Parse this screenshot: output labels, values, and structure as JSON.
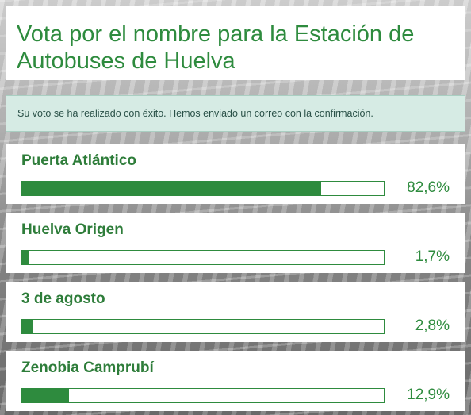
{
  "poll": {
    "title": "Vota por el nombre para la Estación de Autobuses de Huelva",
    "confirmation": "Su voto se ha realizado con éxito. Hemos enviado un correo con la confirmación.",
    "options": [
      {
        "label": "Puerta Atlántico",
        "percent_text": "82,6%",
        "percent": 82.6
      },
      {
        "label": "Huelva Origen",
        "percent_text": "1,7%",
        "percent": 1.7
      },
      {
        "label": "3 de agosto",
        "percent_text": "2,8%",
        "percent": 2.8
      },
      {
        "label": "Zenobia Camprubí",
        "percent_text": "12,9%",
        "percent": 12.9
      }
    ]
  },
  "colors": {
    "accent": "#2e8b3e",
    "alert_bg": "#d6ebe4",
    "alert_text": "#2a5148"
  }
}
